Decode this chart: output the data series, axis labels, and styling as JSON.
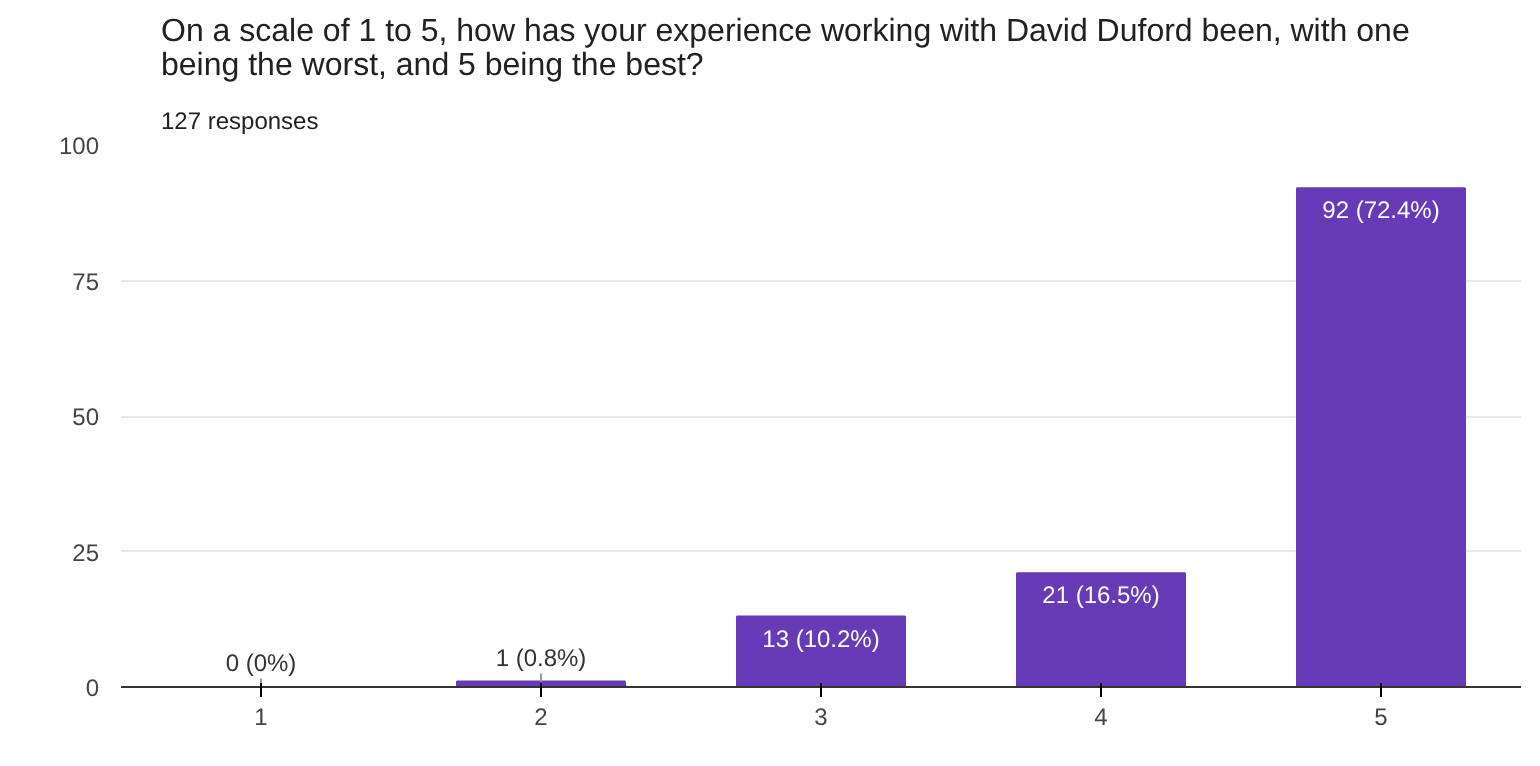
{
  "chart_data": {
    "type": "bar",
    "title": "On a scale of 1 to 5, how has your experience working with David Duford been, with one being the worst, and 5 being the best?",
    "subtitle": "127 responses",
    "categories": [
      "1",
      "2",
      "3",
      "4",
      "5"
    ],
    "values": [
      0,
      1,
      13,
      21,
      92
    ],
    "value_labels": [
      "0 (0%)",
      "1 (0.8%)",
      "13 (10.2%)",
      "21 (16.5%)",
      "92 (72.4%)"
    ],
    "color": "#673ab7",
    "ylim": [
      0,
      100
    ],
    "yticks": [
      0,
      25,
      50,
      75,
      100
    ],
    "grid": "y"
  }
}
